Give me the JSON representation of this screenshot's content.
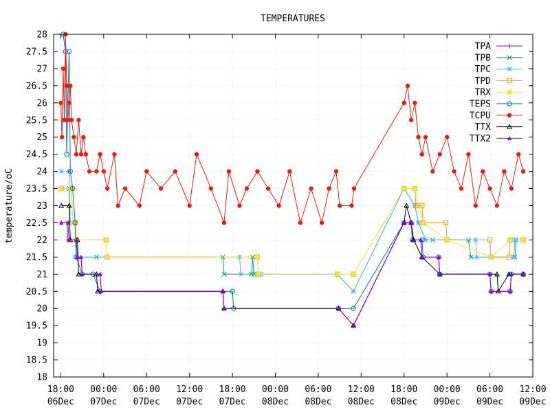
{
  "chart_data": {
    "type": "line",
    "title": "TEMPERATURES",
    "xlabel": "",
    "ylabel": "temperature/oC",
    "ylim": [
      18,
      28
    ],
    "yticks": [
      18,
      18.5,
      19,
      19.5,
      20,
      20.5,
      21,
      21.5,
      22,
      22.5,
      23,
      23.5,
      24,
      24.5,
      25,
      25.5,
      26,
      26.5,
      27,
      27.5,
      28
    ],
    "ytick_labels": [
      "18",
      "18.5",
      "19",
      "19.5",
      "20",
      "20.5",
      "21",
      "21.5",
      "22",
      "22.5",
      "23",
      "23.5",
      "24",
      "24.5",
      "25",
      "25.5",
      "26",
      "26.5",
      "27",
      "27.5",
      "28"
    ],
    "xlim": [
      "06Dec 17:00",
      "09Dec 12:00"
    ],
    "xticks": [
      {
        "time": "18:00",
        "day": "06Dec"
      },
      {
        "time": "00:00",
        "day": "07Dec"
      },
      {
        "time": "06:00",
        "day": "07Dec"
      },
      {
        "time": "12:00",
        "day": "07Dec"
      },
      {
        "time": "18:00",
        "day": "07Dec"
      },
      {
        "time": "00:00",
        "day": "08Dec"
      },
      {
        "time": "06:00",
        "day": "08Dec"
      },
      {
        "time": "12:00",
        "day": "08Dec"
      },
      {
        "time": "18:00",
        "day": "08Dec"
      },
      {
        "time": "00:00",
        "day": "09Dec"
      },
      {
        "time": "06:00",
        "day": "09Dec"
      },
      {
        "time": "12:00",
        "day": "09Dec"
      }
    ],
    "grid": true,
    "legend_position": "top-right",
    "series": [
      {
        "name": "TPA",
        "color": "#9400d3",
        "marker": "plus",
        "points": [
          [
            "06Dec 18:05",
            22.5
          ],
          [
            "06Dec 18:50",
            22.5
          ],
          [
            "06Dec 19:00",
            22
          ],
          [
            "06Dec 20:10",
            22
          ],
          [
            "06Dec 20:20",
            21.5
          ],
          [
            "06Dec 20:50",
            21.5
          ],
          [
            "06Dec 21:00",
            21
          ],
          [
            "06Dec 23:30",
            21
          ],
          [
            "06Dec 23:40",
            20.5
          ],
          [
            "07Dec 16:40",
            20.5
          ],
          [
            "07Dec 16:50",
            20
          ],
          [
            "08Dec 08:50",
            20
          ],
          [
            "08Dec 10:55",
            19.5
          ],
          [
            "08Dec 18:00",
            22.5
          ],
          [
            "08Dec 19:00",
            22.5
          ],
          [
            "08Dec 19:10",
            22
          ],
          [
            "08Dec 20:20",
            22
          ],
          [
            "08Dec 20:30",
            21.5
          ],
          [
            "08Dec 22:50",
            21.5
          ],
          [
            "08Dec 23:00",
            21
          ],
          [
            "09Dec 06:00",
            21
          ],
          [
            "09Dec 06:10",
            20.5
          ],
          [
            "09Dec 08:50",
            20.5
          ],
          [
            "09Dec 09:00",
            21
          ],
          [
            "09Dec 10:40",
            21
          ]
        ]
      },
      {
        "name": "TPB",
        "color": "#009e73",
        "marker": "cross",
        "points": [
          [
            "06Dec 18:05",
            23.5
          ],
          [
            "06Dec 19:10",
            23.5
          ],
          [
            "06Dec 19:20",
            22.5
          ],
          [
            "06Dec 20:00",
            22.5
          ],
          [
            "06Dec 20:10",
            21.5
          ],
          [
            "06Dec 23:00",
            21.5
          ],
          [
            "07Dec 16:40",
            21.5
          ],
          [
            "07Dec 16:50",
            21
          ],
          [
            "07Dec 20:40",
            21
          ],
          [
            "07Dec 20:50",
            21.5
          ],
          [
            "07Dec 21:00",
            21
          ],
          [
            "08Dec 08:40",
            21
          ],
          [
            "08Dec 10:55",
            20.5
          ],
          [
            "08Dec 18:00",
            23.5
          ],
          [
            "08Dec 19:30",
            23
          ],
          [
            "08Dec 20:00",
            22.5
          ],
          [
            "08Dec 21:00",
            22
          ],
          [
            "08Dec 22:00",
            22
          ],
          [
            "09Dec 03:00",
            22
          ],
          [
            "09Dec 03:20",
            21.5
          ],
          [
            "09Dec 09:30",
            21.5
          ],
          [
            "09Dec 09:40",
            22
          ],
          [
            "09Dec 10:40",
            22
          ]
        ]
      },
      {
        "name": "TPC",
        "color": "#56b4e9",
        "marker": "star",
        "points": [
          [
            "06Dec 18:05",
            24
          ],
          [
            "06Dec 19:10",
            24
          ],
          [
            "06Dec 19:20",
            22.5
          ],
          [
            "06Dec 20:00",
            22.5
          ],
          [
            "06Dec 20:10",
            21.5
          ],
          [
            "07Dec 19:00",
            21.5
          ],
          [
            "07Dec 19:10",
            21
          ],
          [
            "07Dec 22:00",
            21
          ],
          [
            "08Dec 08:40",
            21
          ],
          [
            "08Dec 10:55",
            20.5
          ],
          [
            "08Dec 18:00",
            23.5
          ],
          [
            "08Dec 19:30",
            23
          ],
          [
            "08Dec 20:00",
            22.5
          ],
          [
            "08Dec 21:00",
            22
          ],
          [
            "09Dec 04:00",
            22
          ],
          [
            "09Dec 04:10",
            21.5
          ],
          [
            "09Dec 09:20",
            21.5
          ],
          [
            "09Dec 09:30",
            22
          ],
          [
            "09Dec 10:40",
            22
          ]
        ]
      },
      {
        "name": "TPD",
        "color": "#e69f00",
        "marker": "square",
        "points": [
          [
            "06Dec 18:05",
            23.5
          ],
          [
            "06Dec 19:30",
            23.5
          ],
          [
            "06Dec 19:40",
            22.5
          ],
          [
            "06Dec 20:00",
            22.5
          ],
          [
            "06Dec 20:10",
            22
          ],
          [
            "07Dec 00:20",
            22
          ],
          [
            "07Dec 00:30",
            21.5
          ],
          [
            "07Dec 21:30",
            21.5
          ],
          [
            "07Dec 21:40",
            21
          ],
          [
            "08Dec 08:40",
            21
          ],
          [
            "08Dec 10:55",
            21
          ],
          [
            "08Dec 18:00",
            23.5
          ],
          [
            "08Dec 19:30",
            23.5
          ],
          [
            "08Dec 19:40",
            23
          ],
          [
            "08Dec 20:30",
            23
          ],
          [
            "08Dec 20:40",
            22.5
          ],
          [
            "08Dec 23:50",
            22.5
          ],
          [
            "09Dec 00:00",
            22
          ],
          [
            "09Dec 06:00",
            22
          ],
          [
            "09Dec 06:10",
            21.5
          ],
          [
            "09Dec 08:40",
            21.5
          ],
          [
            "09Dec 08:50",
            22
          ],
          [
            "09Dec 10:40",
            22
          ]
        ]
      },
      {
        "name": "TRX",
        "color": "#f0e442",
        "marker": "square-filled",
        "points": [
          [
            "06Dec 18:05",
            23.5
          ],
          [
            "06Dec 19:30",
            23.5
          ],
          [
            "06Dec 19:40",
            22.5
          ],
          [
            "06Dec 20:00",
            22.5
          ],
          [
            "06Dec 20:10",
            22
          ],
          [
            "07Dec 00:20",
            22
          ],
          [
            "07Dec 00:30",
            21.5
          ],
          [
            "07Dec 21:30",
            21.5
          ],
          [
            "07Dec 21:40",
            21
          ],
          [
            "08Dec 08:40",
            21
          ],
          [
            "08Dec 10:55",
            21
          ],
          [
            "08Dec 18:00",
            23.5
          ],
          [
            "08Dec 19:30",
            23.5
          ],
          [
            "08Dec 20:40",
            22.5
          ],
          [
            "09Dec 00:00",
            22
          ],
          [
            "09Dec 06:10",
            21.5
          ],
          [
            "09Dec 08:50",
            22
          ],
          [
            "09Dec 10:40",
            22
          ]
        ]
      },
      {
        "name": "TEPS",
        "color": "#0072b2",
        "marker": "circle",
        "points": [
          [
            "06Dec 18:20",
            28
          ],
          [
            "06Dec 18:40",
            27.5
          ],
          [
            "06Dec 18:50",
            24.5
          ],
          [
            "06Dec 19:10",
            27.5
          ],
          [
            "06Dec 19:20",
            24
          ],
          [
            "06Dec 19:40",
            23.5
          ],
          [
            "06Dec 20:00",
            22.5
          ],
          [
            "06Dec 20:10",
            21.5
          ],
          [
            "06Dec 21:00",
            21
          ],
          [
            "06Dec 22:30",
            21
          ],
          [
            "06Dec 23:30",
            20.5
          ],
          [
            "07Dec 18:00",
            20.5
          ],
          [
            "07Dec 18:10",
            20
          ],
          [
            "08Dec 08:50",
            20
          ],
          [
            "08Dec 10:55",
            20
          ],
          [
            "08Dec 18:00",
            22.5
          ],
          [
            "08Dec 19:00",
            22.5
          ],
          [
            "08Dec 19:10",
            22
          ],
          [
            "08Dec 20:30",
            22
          ],
          [
            "08Dec 20:40",
            21.5
          ],
          [
            "08Dec 22:50",
            21.5
          ],
          [
            "08Dec 23:00",
            21
          ],
          [
            "09Dec 06:00",
            21
          ],
          [
            "09Dec 06:10",
            20.5
          ],
          [
            "09Dec 08:50",
            20.5
          ],
          [
            "09Dec 09:00",
            21
          ],
          [
            "09Dec 10:40",
            21
          ]
        ]
      },
      {
        "name": "TCPU",
        "color": "#e51e10",
        "marker": "circle-filled",
        "points": [
          [
            "06Dec 18:00",
            26
          ],
          [
            "06Dec 18:10",
            25
          ],
          [
            "06Dec 18:20",
            27
          ],
          [
            "06Dec 18:30",
            25.5
          ],
          [
            "06Dec 18:40",
            28
          ],
          [
            "06Dec 18:50",
            26.5
          ],
          [
            "06Dec 19:00",
            25.5
          ],
          [
            "06Dec 19:10",
            26
          ],
          [
            "06Dec 19:20",
            26.5
          ],
          [
            "06Dec 19:30",
            25.5
          ],
          [
            "06Dec 19:50",
            25
          ],
          [
            "06Dec 20:10",
            24.5
          ],
          [
            "06Dec 20:30",
            25.5
          ],
          [
            "06Dec 20:50",
            24.5
          ],
          [
            "06Dec 21:10",
            25
          ],
          [
            "06Dec 21:30",
            24.5
          ],
          [
            "06Dec 22:00",
            24
          ],
          [
            "06Dec 23:00",
            24
          ],
          [
            "06Dec 23:30",
            24.5
          ],
          [
            "07Dec 00:00",
            24
          ],
          [
            "07Dec 00:30",
            23.5
          ],
          [
            "07Dec 01:30",
            24.5
          ],
          [
            "07Dec 02:00",
            23
          ],
          [
            "07Dec 03:00",
            23.5
          ],
          [
            "07Dec 05:00",
            23
          ],
          [
            "07Dec 06:00",
            24
          ],
          [
            "07Dec 08:00",
            23.5
          ],
          [
            "07Dec 10:00",
            24
          ],
          [
            "07Dec 12:00",
            23
          ],
          [
            "07Dec 13:00",
            24.5
          ],
          [
            "07Dec 15:00",
            23.5
          ],
          [
            "07Dec 16:50",
            22.5
          ],
          [
            "07Dec 17:30",
            24
          ],
          [
            "07Dec 19:00",
            23
          ],
          [
            "07Dec 20:00",
            23.5
          ],
          [
            "07Dec 21:30",
            24
          ],
          [
            "07Dec 23:00",
            23.5
          ],
          [
            "08Dec 00:30",
            23
          ],
          [
            "08Dec 02:00",
            24
          ],
          [
            "08Dec 03:30",
            22.5
          ],
          [
            "08Dec 05:00",
            23.5
          ],
          [
            "08Dec 06:30",
            22.5
          ],
          [
            "08Dec 07:30",
            23.5
          ],
          [
            "08Dec 08:30",
            24
          ],
          [
            "08Dec 09:00",
            23
          ],
          [
            "08Dec 10:40",
            23
          ],
          [
            "08Dec 11:00",
            23.5
          ],
          [
            "08Dec 18:00",
            26
          ],
          [
            "08Dec 18:30",
            26.5
          ],
          [
            "08Dec 19:00",
            25.5
          ],
          [
            "08Dec 19:30",
            26
          ],
          [
            "08Dec 20:00",
            25
          ],
          [
            "08Dec 20:30",
            24.5
          ],
          [
            "08Dec 21:00",
            25
          ],
          [
            "08Dec 22:00",
            24
          ],
          [
            "08Dec 23:00",
            24.5
          ],
          [
            "09Dec 00:00",
            25
          ],
          [
            "09Dec 01:00",
            24
          ],
          [
            "09Dec 02:00",
            23.5
          ],
          [
            "09Dec 03:00",
            24.5
          ],
          [
            "09Dec 04:00",
            23
          ],
          [
            "09Dec 05:00",
            24
          ],
          [
            "09Dec 06:00",
            23.5
          ],
          [
            "09Dec 07:00",
            23
          ],
          [
            "09Dec 08:00",
            24
          ],
          [
            "09Dec 09:00",
            23.5
          ],
          [
            "09Dec 10:00",
            24.5
          ],
          [
            "09Dec 10:40",
            24
          ]
        ]
      },
      {
        "name": "TTX",
        "color": "#000000",
        "marker": "triangle",
        "points": [
          [
            "06Dec 18:05",
            23
          ],
          [
            "06Dec 19:10",
            23
          ],
          [
            "06Dec 19:20",
            22
          ],
          [
            "06Dec 20:20",
            22
          ],
          [
            "06Dec 20:30",
            21
          ],
          [
            "06Dec 23:00",
            21
          ],
          [
            "06Dec 23:10",
            20.5
          ],
          [
            "07Dec 16:40",
            20.5
          ],
          [
            "07Dec 16:50",
            20
          ],
          [
            "08Dec 08:50",
            20
          ],
          [
            "08Dec 10:55",
            19.5
          ],
          [
            "08Dec 18:00",
            22.5
          ],
          [
            "08Dec 18:20",
            23
          ],
          [
            "08Dec 19:00",
            22.5
          ],
          [
            "08Dec 19:20",
            22
          ],
          [
            "08Dec 20:30",
            21.5
          ],
          [
            "08Dec 23:00",
            21
          ],
          [
            "09Dec 07:00",
            21
          ],
          [
            "09Dec 07:10",
            20.5
          ],
          [
            "09Dec 08:40",
            21
          ],
          [
            "09Dec 10:40",
            21
          ]
        ]
      },
      {
        "name": "TTX2",
        "color": "#9400d3",
        "marker": "triangle-filled",
        "points": [
          [
            "06Dec 18:05",
            22.5
          ],
          [
            "06Dec 19:00",
            22.5
          ],
          [
            "06Dec 19:10",
            22
          ],
          [
            "06Dec 20:10",
            22
          ],
          [
            "06Dec 20:20",
            21.5
          ],
          [
            "06Dec 20:50",
            21.5
          ],
          [
            "06Dec 21:00",
            21
          ],
          [
            "06Dec 23:30",
            21
          ],
          [
            "06Dec 23:40",
            20.5
          ],
          [
            "07Dec 16:40",
            20.5
          ],
          [
            "07Dec 16:50",
            20
          ],
          [
            "08Dec 08:50",
            20
          ],
          [
            "08Dec 10:55",
            19.5
          ],
          [
            "08Dec 18:00",
            22.5
          ],
          [
            "08Dec 19:00",
            22.5
          ],
          [
            "08Dec 19:10",
            22
          ],
          [
            "08Dec 20:20",
            22
          ],
          [
            "08Dec 20:30",
            21.5
          ],
          [
            "08Dec 22:50",
            21.5
          ],
          [
            "08Dec 23:00",
            21
          ],
          [
            "09Dec 06:00",
            21
          ],
          [
            "09Dec 06:10",
            20.5
          ],
          [
            "09Dec 08:50",
            20.5
          ],
          [
            "09Dec 09:00",
            21
          ],
          [
            "09Dec 10:40",
            21
          ]
        ]
      }
    ]
  }
}
